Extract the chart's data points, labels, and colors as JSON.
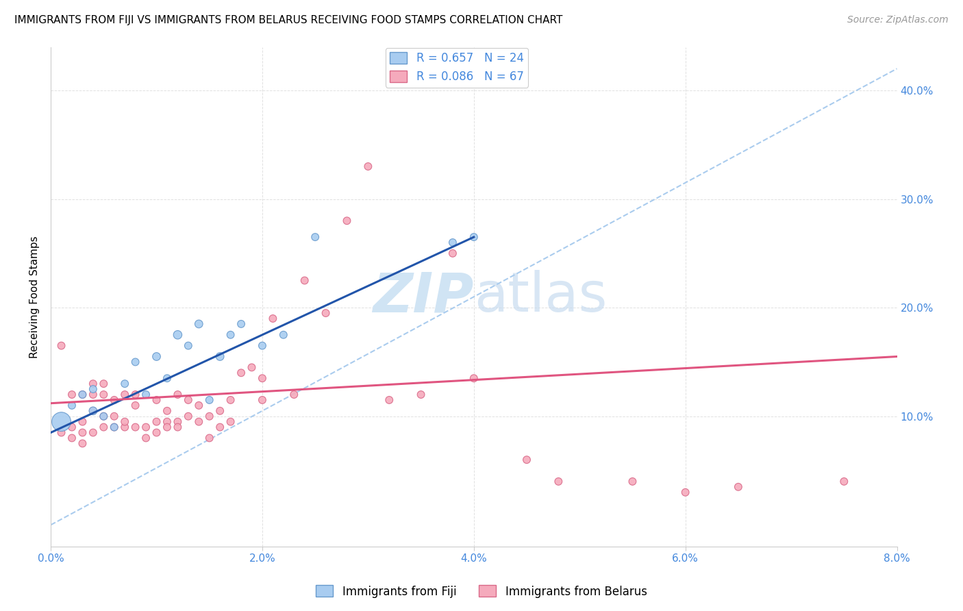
{
  "title": "IMMIGRANTS FROM FIJI VS IMMIGRANTS FROM BELARUS RECEIVING FOOD STAMPS CORRELATION CHART",
  "source": "Source: ZipAtlas.com",
  "ylabel": "Receiving Food Stamps",
  "fiji_label": "Immigrants from Fiji",
  "belarus_label": "Immigrants from Belarus",
  "fiji_R": 0.657,
  "fiji_N": 24,
  "belarus_R": 0.086,
  "belarus_N": 67,
  "xlim": [
    0.0,
    0.08
  ],
  "ylim": [
    -0.02,
    0.44
  ],
  "yticks_right": [
    0.1,
    0.2,
    0.3,
    0.4
  ],
  "ytick_labels_right": [
    "10.0%",
    "20.0%",
    "30.0%",
    "40.0%"
  ],
  "xticks": [
    0.0,
    0.02,
    0.04,
    0.06,
    0.08
  ],
  "xtick_labels": [
    "0.0%",
    "2.0%",
    "4.0%",
    "6.0%",
    "8.0%"
  ],
  "fiji_color": "#A8CCF0",
  "fiji_edge_color": "#6699CC",
  "belarus_color": "#F5AABC",
  "belarus_edge_color": "#D96888",
  "fiji_line_color": "#2255AA",
  "belarus_line_color": "#E05580",
  "ref_line_color": "#AACCEE",
  "grid_color": "#DDDDDD",
  "axis_color": "#4488DD",
  "watermark_color": "#D0E4F4",
  "title_fontsize": 11,
  "source_fontsize": 10,
  "tick_fontsize": 11,
  "ylabel_fontsize": 11,
  "legend_fontsize": 12,
  "watermark_fontsize": 58,
  "fiji_x": [
    0.001,
    0.002,
    0.003,
    0.004,
    0.004,
    0.005,
    0.006,
    0.007,
    0.008,
    0.009,
    0.01,
    0.011,
    0.012,
    0.013,
    0.014,
    0.015,
    0.016,
    0.017,
    0.018,
    0.02,
    0.022,
    0.025,
    0.038,
    0.04
  ],
  "fiji_y": [
    0.095,
    0.11,
    0.12,
    0.105,
    0.125,
    0.1,
    0.09,
    0.13,
    0.15,
    0.12,
    0.155,
    0.135,
    0.175,
    0.165,
    0.185,
    0.115,
    0.155,
    0.175,
    0.185,
    0.165,
    0.175,
    0.265,
    0.26,
    0.265
  ],
  "fiji_sizes": [
    400,
    60,
    60,
    70,
    60,
    60,
    60,
    60,
    60,
    60,
    70,
    60,
    80,
    60,
    70,
    60,
    70,
    60,
    60,
    60,
    60,
    60,
    60,
    60
  ],
  "belarus_x": [
    0.001,
    0.001,
    0.002,
    0.002,
    0.002,
    0.003,
    0.003,
    0.003,
    0.003,
    0.004,
    0.004,
    0.004,
    0.004,
    0.005,
    0.005,
    0.005,
    0.005,
    0.006,
    0.006,
    0.006,
    0.007,
    0.007,
    0.007,
    0.008,
    0.008,
    0.008,
    0.009,
    0.009,
    0.01,
    0.01,
    0.01,
    0.011,
    0.011,
    0.011,
    0.012,
    0.012,
    0.012,
    0.013,
    0.013,
    0.014,
    0.014,
    0.015,
    0.015,
    0.016,
    0.016,
    0.017,
    0.017,
    0.018,
    0.019,
    0.02,
    0.02,
    0.021,
    0.023,
    0.024,
    0.026,
    0.028,
    0.03,
    0.032,
    0.035,
    0.038,
    0.04,
    0.045,
    0.048,
    0.055,
    0.06,
    0.065,
    0.075
  ],
  "belarus_y": [
    0.165,
    0.085,
    0.12,
    0.09,
    0.08,
    0.095,
    0.12,
    0.085,
    0.075,
    0.105,
    0.12,
    0.085,
    0.13,
    0.09,
    0.1,
    0.12,
    0.13,
    0.09,
    0.115,
    0.1,
    0.09,
    0.095,
    0.12,
    0.09,
    0.11,
    0.12,
    0.08,
    0.09,
    0.095,
    0.115,
    0.085,
    0.095,
    0.105,
    0.09,
    0.095,
    0.12,
    0.09,
    0.1,
    0.115,
    0.11,
    0.095,
    0.08,
    0.1,
    0.09,
    0.105,
    0.095,
    0.115,
    0.14,
    0.145,
    0.115,
    0.135,
    0.19,
    0.12,
    0.225,
    0.195,
    0.28,
    0.33,
    0.115,
    0.12,
    0.25,
    0.135,
    0.06,
    0.04,
    0.04,
    0.03,
    0.035,
    0.04
  ],
  "belarus_sizes": [
    60,
    60,
    60,
    60,
    60,
    60,
    60,
    60,
    60,
    60,
    60,
    60,
    60,
    60,
    60,
    60,
    60,
    60,
    60,
    60,
    60,
    60,
    60,
    60,
    60,
    60,
    60,
    60,
    60,
    60,
    60,
    60,
    60,
    60,
    60,
    60,
    60,
    60,
    60,
    60,
    60,
    60,
    60,
    60,
    60,
    60,
    60,
    60,
    60,
    60,
    60,
    60,
    60,
    60,
    60,
    60,
    60,
    60,
    60,
    60,
    60,
    60,
    60,
    60,
    60,
    60,
    60
  ],
  "fiji_trend_x": [
    0.0,
    0.04
  ],
  "fiji_trend_y": [
    0.085,
    0.265
  ],
  "belarus_trend_x": [
    0.0,
    0.08
  ],
  "belarus_trend_y": [
    0.112,
    0.155
  ],
  "ref_line_x": [
    0.0,
    0.08
  ],
  "ref_line_y": [
    0.0,
    0.42
  ]
}
